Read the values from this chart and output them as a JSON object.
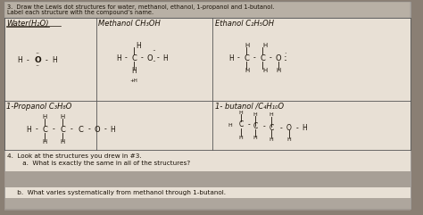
{
  "bg_color": "#8a7f74",
  "paper_color": "#e8e0d5",
  "title_bg": "#b8b0a5",
  "font_color": "#1a1208",
  "line_color": "#1a1208",
  "grid_color": "#555555",
  "title_line1": "3.  Draw the Lewis dot structures for water, methanol, ethanol, 1-propanol and 1-butanol.",
  "title_line2": "Label each structure with the compound’s name.",
  "water_label": "Water(H₂O)",
  "methanol_label": "Methanol CH₃OH",
  "ethanol_label": "Ethanol C₂H₅OH",
  "propanol_label": "1-Propanol C₃H₈O",
  "butanol_label": "1- butanol /C₄H₁₀O",
  "q4": "4.  Look at the structures you drew in #3.",
  "q4a": "     a.  What is exactly the same in all of the structures?",
  "q4b": "     b.  What varies systematically from methanol through 1-butanol.",
  "tsz": 5.5,
  "lsz": 6.0,
  "title_sz": 4.8
}
